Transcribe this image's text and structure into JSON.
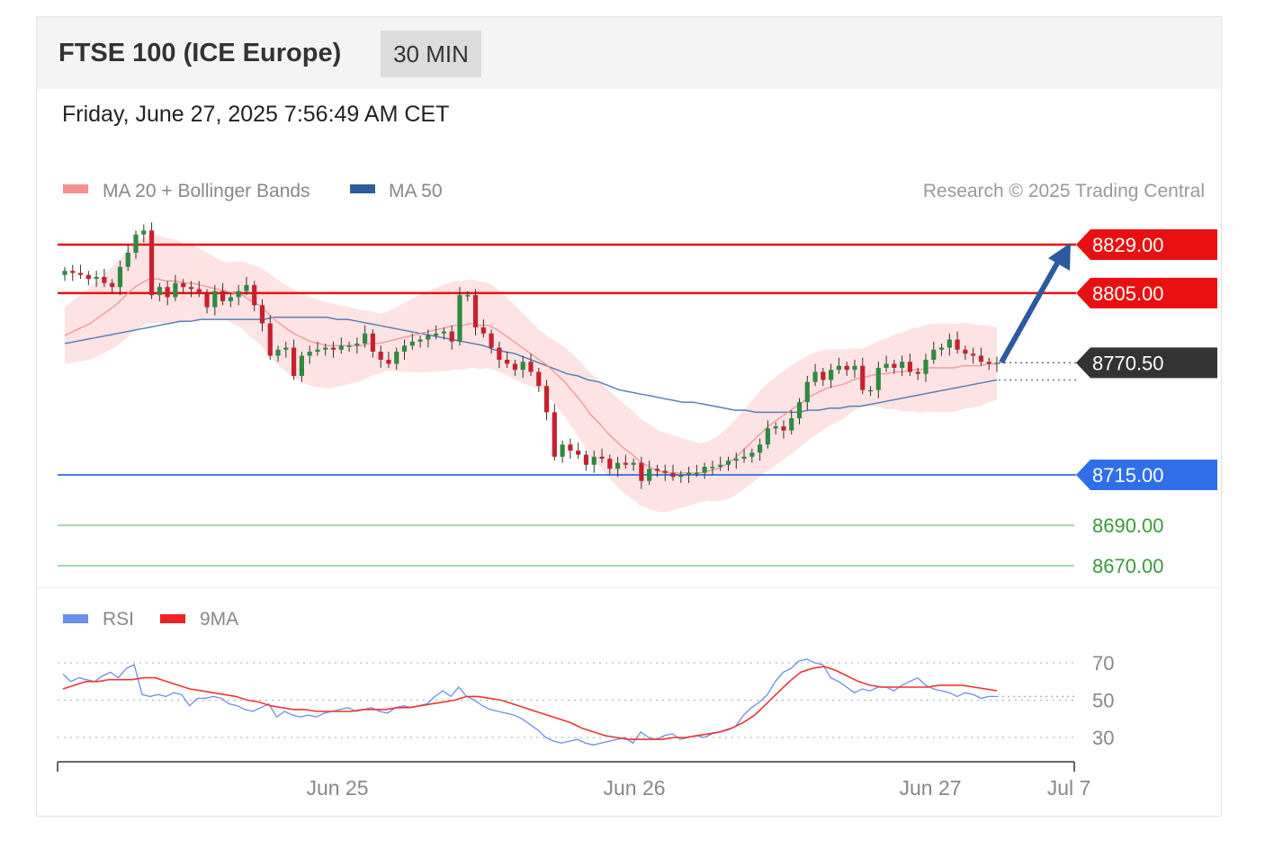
{
  "header": {
    "title": "FTSE 100 (ICE Europe)",
    "timeframe": "30 MIN",
    "datetime": "Friday, June 27, 2025 7:56:49 AM CET"
  },
  "credit": "Research © 2025 Trading Central",
  "legend": {
    "main": [
      {
        "label": "MA 20 + Bollinger Bands",
        "color": "#f58f8f"
      },
      {
        "label": "MA 50",
        "color": "#2f5d9c"
      }
    ],
    "rsi": [
      {
        "label": "RSI",
        "color": "#6b8ee6"
      },
      {
        "label": "9MA",
        "color": "#ee2222"
      }
    ]
  },
  "colors": {
    "resistance": "#e81010",
    "support": "#2f6fe8",
    "target": "#55aa55",
    "last_price": "#333333",
    "arrow": "#2c5aa0",
    "bull": "#2e8b3e",
    "bear": "#c8202e",
    "band_fill": "#fde3e3",
    "ma20": "#f28f8f",
    "ma50": "#5a7fb5"
  },
  "chart_data": [
    {
      "type": "candlestick",
      "name": "price",
      "yaxis_scale": "linear",
      "x_ticks": [
        "Jun 25",
        "Jun 26",
        "Jun 27",
        "Jul 7"
      ],
      "levels": [
        {
          "label": "8829.00",
          "value": 8829.0,
          "kind": "resistance"
        },
        {
          "label": "8805.00",
          "value": 8805.0,
          "kind": "resistance"
        },
        {
          "label": "8770.50",
          "value": 8770.5,
          "kind": "last"
        },
        {
          "label": "8715.00",
          "value": 8715.0,
          "kind": "support"
        },
        {
          "label": "8690.00",
          "value": 8690.0,
          "kind": "target"
        },
        {
          "label": "8670.00",
          "value": 8670.0,
          "kind": "target"
        }
      ],
      "close": [
        8816,
        8815,
        8814,
        8812,
        8813,
        8810,
        8808,
        8818,
        8825,
        8834,
        8836,
        8804,
        8808,
        8803,
        8810,
        8808,
        8807,
        8805,
        8798,
        8806,
        8801,
        8803,
        8806,
        8809,
        8799,
        8790,
        8774,
        8777,
        8778,
        8764,
        8774,
        8776,
        8777,
        8778,
        8777,
        8779,
        8779,
        8780,
        8785,
        8776,
        8772,
        8770,
        8776,
        8779,
        8781,
        8782,
        8784,
        8785,
        8786,
        8781,
        8804,
        8804,
        8788,
        8785,
        8778,
        8772,
        8770,
        8767,
        8771,
        8766,
        8759,
        8746,
        8724,
        8730,
        8727,
        8725,
        8720,
        8724,
        8723,
        8718,
        8721,
        8720,
        8721,
        8712,
        8718,
        8717,
        8716,
        8714,
        8715,
        8716,
        8716,
        8719,
        8719,
        8720,
        8722,
        8723,
        8724,
        8726,
        8730,
        8738,
        8739,
        8737,
        8743,
        8751,
        8761,
        8766,
        8762,
        8767,
        8769,
        8767,
        8769,
        8757,
        8757,
        8768,
        8770,
        8768,
        8771,
        8766,
        8765,
        8772,
        8777,
        8778,
        8782,
        8777,
        8775,
        8774,
        8771,
        8770,
        8770.5
      ],
      "ma20": [
        8784,
        8786,
        8788,
        8790,
        8793,
        8796,
        8799,
        8803,
        8807,
        8810,
        8812,
        8812,
        8811,
        8811,
        8810,
        8810,
        8809,
        8808,
        8807,
        8806,
        8805,
        8804,
        8801,
        8799,
        8795,
        8791,
        8788,
        8785,
        8783,
        8781,
        8780,
        8779,
        8779,
        8779,
        8779,
        8779,
        8780,
        8780,
        8781,
        8782,
        8783,
        8784,
        8785,
        8786,
        8787,
        8788,
        8789,
        8789,
        8790,
        8789,
        8789,
        8787,
        8784,
        8781,
        8778,
        8775,
        8772,
        8769,
        8765,
        8761,
        8756,
        8751,
        8745,
        8741,
        8736,
        8732,
        8728,
        8725,
        8721,
        8719,
        8717,
        8716,
        8716,
        8716,
        8716,
        8716,
        8717,
        8718,
        8720,
        8723,
        8727,
        8731,
        8735,
        8739,
        8742,
        8745,
        8748,
        8751,
        8754,
        8756,
        8758,
        8759,
        8760,
        8762,
        8763,
        8764,
        8765,
        8765,
        8766,
        8766,
        8767,
        8767,
        8768,
        8768,
        8768,
        8768,
        8769,
        8769,
        8769,
        8770,
        8770
      ],
      "ma50": [
        8780,
        8781,
        8782,
        8783,
        8784,
        8785,
        8786,
        8787,
        8788,
        8789,
        8790,
        8791,
        8791,
        8792,
        8792,
        8792,
        8792,
        8792,
        8792,
        8792,
        8793,
        8793,
        8793,
        8793,
        8793,
        8793,
        8792,
        8792,
        8791,
        8790,
        8789,
        8788,
        8787,
        8786,
        8785,
        8784,
        8783,
        8782,
        8781,
        8780,
        8779,
        8777,
        8776,
        8775,
        8773,
        8771,
        8769,
        8767,
        8765,
        8764,
        8762,
        8761,
        8759,
        8757,
        8756,
        8755,
        8754,
        8753,
        8752,
        8751,
        8751,
        8750,
        8749,
        8748,
        8747,
        8747,
        8746,
        8746,
        8746,
        8746,
        8746,
        8747,
        8747,
        8748,
        8748,
        8749,
        8749,
        8750,
        8751,
        8752,
        8753,
        8754,
        8755,
        8756,
        8757,
        8758,
        8759,
        8760,
        8761,
        8762
      ]
    },
    {
      "type": "line",
      "name": "rsi",
      "yticks": [
        70,
        50,
        30
      ],
      "series": [
        {
          "name": "RSI",
          "values": [
            64,
            60,
            62,
            61,
            60,
            63,
            65,
            62,
            67,
            69,
            53,
            52,
            53,
            52,
            54,
            53,
            47,
            51,
            51,
            52,
            51,
            48,
            47,
            45,
            44,
            46,
            48,
            41,
            44,
            42,
            41,
            42,
            41,
            43,
            44,
            45,
            46,
            44,
            45,
            46,
            44,
            43,
            46,
            47,
            46,
            47,
            48,
            52,
            55,
            52,
            57,
            52,
            50,
            47,
            45,
            44,
            43,
            42,
            40,
            37,
            34,
            30,
            28,
            27,
            28,
            29,
            27,
            26,
            27,
            28,
            29,
            30,
            27,
            33,
            30,
            29,
            31,
            32,
            29,
            30,
            31,
            30,
            32,
            33,
            34,
            36,
            42,
            46,
            49,
            53,
            60,
            65,
            67,
            71,
            72,
            70,
            69,
            62,
            60,
            57,
            54,
            56,
            55,
            57,
            57,
            55,
            58,
            60,
            62,
            58,
            56,
            55,
            54,
            52,
            54,
            53,
            51,
            52,
            52
          ]
        },
        {
          "name": "9MA",
          "values": [
            56,
            58,
            60,
            60,
            61,
            61,
            61,
            62,
            62,
            60,
            58,
            56,
            55,
            54,
            53,
            52,
            50,
            49,
            47,
            46,
            45,
            45,
            44,
            44,
            44,
            44,
            45,
            45,
            45,
            46,
            46,
            47,
            48,
            49,
            50,
            52,
            52,
            51,
            50,
            48,
            46,
            44,
            42,
            40,
            38,
            35,
            33,
            31,
            30,
            29,
            29,
            29,
            29,
            30,
            30,
            31,
            32,
            33,
            35,
            38,
            42,
            48,
            54,
            60,
            65,
            67,
            68,
            66,
            63,
            60,
            58,
            57,
            57,
            57,
            57,
            57,
            58,
            58,
            58,
            57,
            56,
            55
          ]
        }
      ]
    }
  ]
}
